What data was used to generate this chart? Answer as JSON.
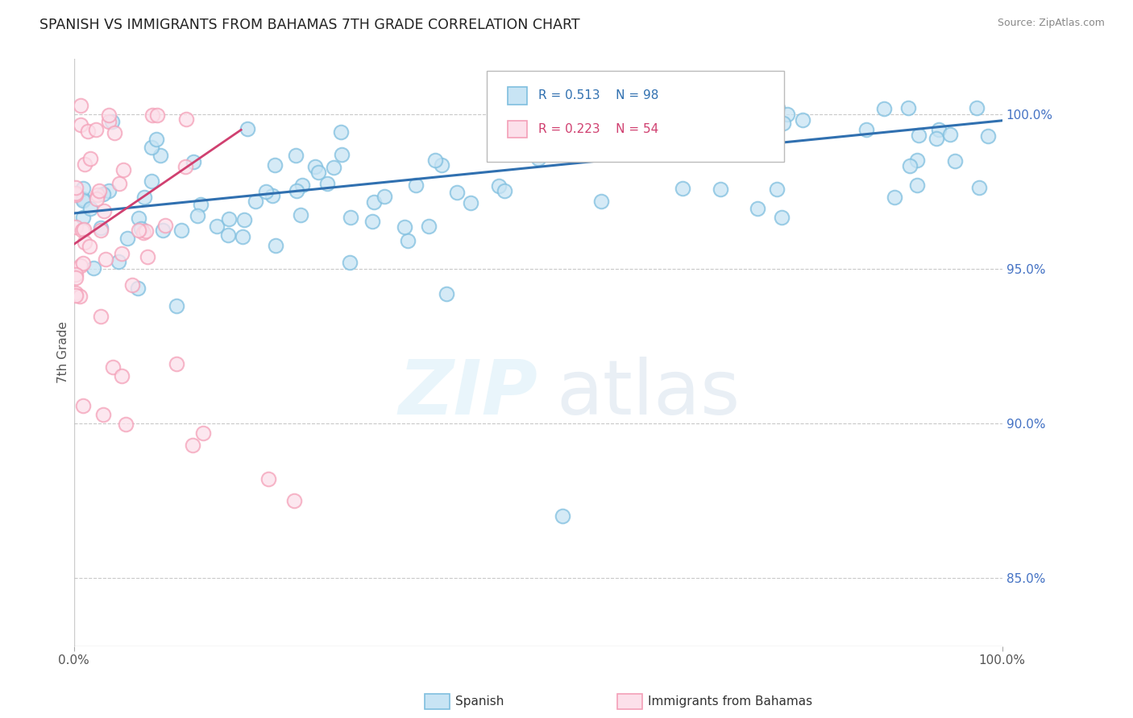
{
  "title": "SPANISH VS IMMIGRANTS FROM BAHAMAS 7TH GRADE CORRELATION CHART",
  "source_text": "Source: ZipAtlas.com",
  "ylabel_left": "7th Grade",
  "xlabel_bottom_left": "0.0%",
  "xlabel_bottom_right": "100.0%",
  "ytick_labels": [
    "100.0%",
    "95.0%",
    "90.0%",
    "85.0%"
  ],
  "ytick_values": [
    1.0,
    0.95,
    0.9,
    0.85
  ],
  "xlim": [
    0.0,
    1.0
  ],
  "ylim": [
    0.828,
    1.018
  ],
  "blue_R": 0.513,
  "blue_N": 98,
  "pink_R": 0.223,
  "pink_N": 54,
  "blue_color": "#7fbfdf",
  "pink_color": "#f4a0b8",
  "blue_line_color": "#3070b0",
  "pink_line_color": "#d04070",
  "legend_label_blue": "Spanish",
  "legend_label_pink": "Immigrants from Bahamas",
  "watermark_line1": "ZIP",
  "watermark_line2": "atlas",
  "background_color": "#ffffff",
  "grid_color": "#bbbbbb",
  "title_color": "#222222",
  "source_color": "#888888",
  "axis_label_color": "#555555",
  "ytick_color": "#4472c4",
  "legend_box_color": "#e8e8e8",
  "legend_border_color": "#bbbbbb"
}
